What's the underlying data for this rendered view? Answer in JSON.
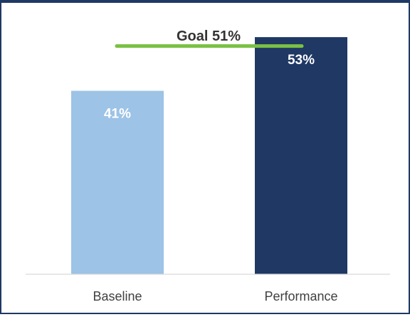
{
  "chart_data": {
    "type": "bar",
    "categories": [
      "Baseline",
      "Performance"
    ],
    "values": [
      41,
      53
    ],
    "data_labels": [
      "41%",
      "53%"
    ],
    "goal": {
      "value": 51,
      "label": "Goal 51%",
      "color": "#7ac143"
    },
    "colors": [
      "#9dc3e6",
      "#1f3864"
    ],
    "ylim": [
      0,
      57
    ],
    "grid": false,
    "legend": "none"
  }
}
